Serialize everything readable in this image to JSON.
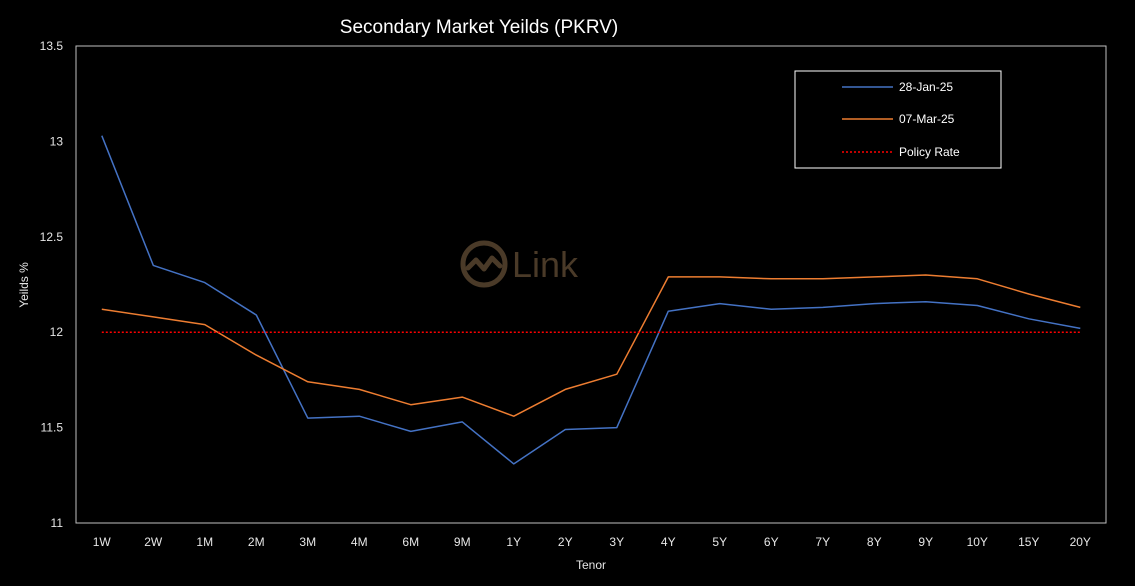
{
  "chart_data": {
    "type": "line",
    "title": "Secondary Market Yeilds (PKRV)",
    "xlabel": "Tenor",
    "ylabel": "Yeilds %",
    "categories": [
      "1W",
      "2W",
      "1M",
      "2M",
      "3M",
      "4M",
      "6M",
      "9M",
      "1Y",
      "2Y",
      "3Y",
      "4Y",
      "5Y",
      "6Y",
      "7Y",
      "8Y",
      "9Y",
      "10Y",
      "15Y",
      "20Y"
    ],
    "ylim": [
      11,
      13.5
    ],
    "yticks": [
      "11",
      "11.5",
      "12",
      "12.5",
      "13",
      "13.5"
    ],
    "grid": false,
    "legend_position": "top-right",
    "series": [
      {
        "name": "28-Jan-25",
        "color": "#4472c4",
        "style": "solid",
        "values": [
          13.03,
          12.35,
          12.26,
          12.09,
          11.55,
          11.56,
          11.48,
          11.53,
          11.31,
          11.49,
          11.5,
          12.11,
          12.15,
          12.12,
          12.13,
          12.15,
          12.16,
          12.14,
          12.07,
          12.02
        ]
      },
      {
        "name": "07-Mar-25",
        "color": "#ed7d31",
        "style": "solid",
        "values": [
          12.12,
          12.08,
          12.04,
          11.88,
          11.74,
          11.7,
          11.62,
          11.66,
          11.56,
          11.7,
          11.78,
          12.29,
          12.29,
          12.28,
          12.28,
          12.29,
          12.3,
          12.28,
          12.2,
          12.13
        ]
      },
      {
        "name": "Policy Rate",
        "color": "#ff0000",
        "style": "dotted",
        "values": [
          12,
          12,
          12,
          12,
          12,
          12,
          12,
          12,
          12,
          12,
          12,
          12,
          12,
          12,
          12,
          12,
          12,
          12,
          12,
          12
        ]
      }
    ]
  },
  "watermark": {
    "text": "Link",
    "icon": "link-logo-icon",
    "color": "#4a3a28"
  }
}
